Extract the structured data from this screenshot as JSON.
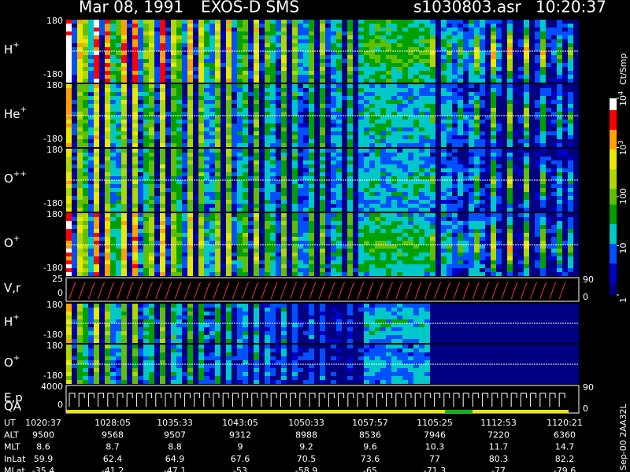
{
  "header": {
    "date": "Mar 08, 1991",
    "instrument": "EXOS-D SMS",
    "file": "s1030803.asr",
    "time": "10:20:37"
  },
  "panels": [
    {
      "label": "H",
      "sup": "+",
      "yticks": [
        180,
        -180
      ]
    },
    {
      "label": "He",
      "sup": "+",
      "yticks": [
        180,
        -180
      ]
    },
    {
      "label": "O",
      "sup": "++",
      "yticks": [
        180,
        -180
      ]
    },
    {
      "label": "O",
      "sup": "+",
      "yticks": [
        180,
        -180
      ]
    },
    {
      "label": "V,r",
      "yticks": [
        25,
        0
      ],
      "y2ticks": [
        90,
        0
      ]
    },
    {
      "label": "H",
      "sup": "+",
      "yticks": [
        180,
        -180
      ]
    },
    {
      "label": "O",
      "sup": "+",
      "yticks": [
        180,
        -180
      ]
    },
    {
      "label": "E,p",
      "yticks": [
        4000,
        0
      ],
      "y2ticks": [
        90,
        0
      ]
    }
  ],
  "qa_label": "QA",
  "colorbar": {
    "unit": "Ct/Smp",
    "ticks": [
      {
        "value": 10000,
        "label": "10",
        "exp": "4"
      },
      {
        "value": 1000,
        "label": "10",
        "exp": "3"
      },
      100,
      10,
      1
    ]
  },
  "table": {
    "rows": [
      {
        "name": "UT",
        "values": [
          "1020:37",
          "1028:05",
          "1035:33",
          "1043:05",
          "1050:33",
          "1057:57",
          "1105:25",
          "1112:53",
          "1120:21"
        ]
      },
      {
        "name": "ALT",
        "values": [
          9500,
          9568,
          9507,
          9312,
          8988,
          8536,
          7946,
          7220,
          6360
        ]
      },
      {
        "name": "MLT",
        "values": [
          8.6,
          8.7,
          8.8,
          9.0,
          9.2,
          9.6,
          10.3,
          11.7,
          14.7
        ]
      },
      {
        "name": "InLat",
        "values": [
          59.9,
          62.4,
          64.9,
          67.6,
          70.5,
          73.6,
          77.0,
          80.3,
          82.2
        ]
      },
      {
        "name": "MLat",
        "values": [
          -35.4,
          -41.2,
          -47.1,
          -53.0,
          -58.9,
          -65.0,
          -71.3,
          -77.0,
          -79.6
        ]
      }
    ]
  },
  "footer": "Sep-00 2AA32L"
}
